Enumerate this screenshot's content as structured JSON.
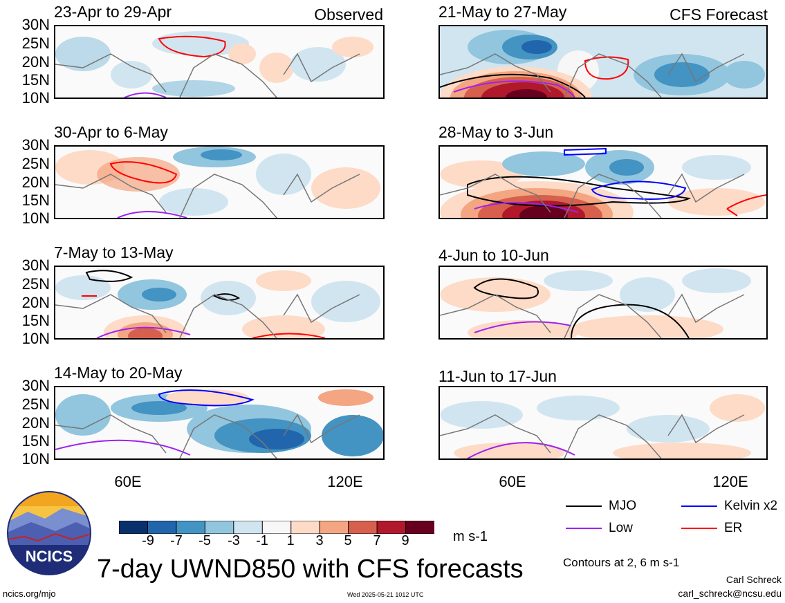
{
  "panels": [
    {
      "id": "p1",
      "title": "23-Apr to 29-Apr",
      "tag": "Observed"
    },
    {
      "id": "p2",
      "title": "21-May to 27-May",
      "tag": "CFS Forecast"
    },
    {
      "id": "p3",
      "title": "30-Apr to 6-May",
      "tag": ""
    },
    {
      "id": "p4",
      "title": "28-May to 3-Jun",
      "tag": ""
    },
    {
      "id": "p5",
      "title": "7-May to 13-May",
      "tag": ""
    },
    {
      "id": "p6",
      "title": "4-Jun to 10-Jun",
      "tag": ""
    },
    {
      "id": "p7",
      "title": "14-May to 20-May",
      "tag": ""
    },
    {
      "id": "p8",
      "title": "11-Jun to 17-Jun",
      "tag": ""
    }
  ],
  "lat_labels": [
    "30N",
    "25N",
    "20N",
    "15N",
    "10N"
  ],
  "lon_labels": [
    "60E",
    "120E"
  ],
  "colorbar": {
    "labels": [
      "-9",
      "-7",
      "-5",
      "-3",
      "-1",
      "1",
      "3",
      "5",
      "7",
      "9"
    ],
    "colors": [
      "#08306b",
      "#2166ac",
      "#4393c3",
      "#92c5de",
      "#d1e5f0",
      "#f7f7f7",
      "#fddbc7",
      "#f4a582",
      "#d6604d",
      "#b2182b",
      "#67001f"
    ],
    "units": "m s-1"
  },
  "legend": [
    {
      "label": "MJO",
      "color": "#000000"
    },
    {
      "label": "Kelvin x2",
      "color": "#0000ff"
    },
    {
      "label": "Low",
      "color": "#a020f0"
    },
    {
      "label": "ER",
      "color": "#ff0000"
    }
  ],
  "logo_text": "NCICS",
  "main_title": "7-day UWND850 with CFS forecasts",
  "contours_note": "Contours at 2, 6 m s-1",
  "site": "ncics.org/mjo",
  "timestamp": "Wed 2025-05-21 1012 UTC",
  "author": "Carl Schreck",
  "email": "carl_schreck@ncsu.edu"
}
